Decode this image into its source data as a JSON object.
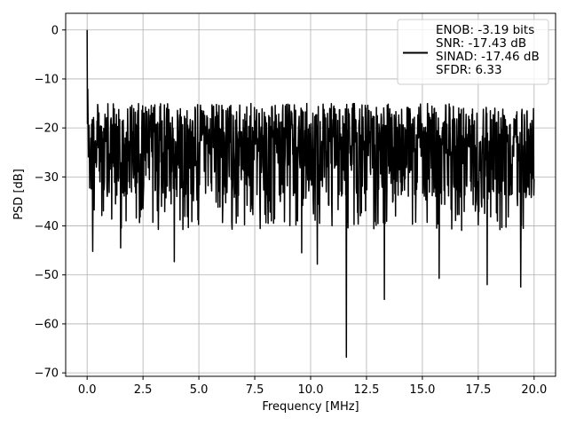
{
  "chart_data": {
    "type": "line",
    "title": "",
    "xlabel": "Frequency [MHz]",
    "ylabel": "PSD [dB]",
    "xlim": [
      -0.96,
      20.96
    ],
    "ylim": [
      -70.7,
      3.4
    ],
    "x_ticks": [
      0.0,
      2.5,
      5.0,
      7.5,
      10.0,
      12.5,
      15.0,
      17.5,
      20.0
    ],
    "x_tick_labels": [
      "0.0",
      "2.5",
      "5.0",
      "7.5",
      "10.0",
      "12.5",
      "15.0",
      "17.5",
      "20.0"
    ],
    "y_ticks": [
      0,
      -10,
      -20,
      -30,
      -40,
      -50,
      -60,
      -70
    ],
    "y_tick_labels": [
      "0",
      "−10",
      "−20",
      "−30",
      "−40",
      "−50",
      "−60",
      "−70"
    ],
    "grid": true,
    "legend_position": "top-right",
    "series": [
      {
        "name": "ENOB: -3.19 bits\nSNR: -17.43 dB\nSINAD: -17.46 dB\nSFDR: 6.33",
        "color": "#000000",
        "x_range": [
          0.0,
          20.0
        ],
        "noise_floor_mean_db": -22,
        "noise_ceiling_db": -14,
        "peak": {
          "x": 0.0,
          "y": 0.0
        },
        "notable_dips": [
          {
            "x": 0.25,
            "y": -45.2
          },
          {
            "x": 1.5,
            "y": -44.5
          },
          {
            "x": 3.9,
            "y": -47.3
          },
          {
            "x": 9.6,
            "y": -45.5
          },
          {
            "x": 10.3,
            "y": -47.8
          },
          {
            "x": 11.6,
            "y": -66.8
          },
          {
            "x": 13.3,
            "y": -55.0
          },
          {
            "x": 15.75,
            "y": -50.7
          },
          {
            "x": 17.9,
            "y": -52.0
          },
          {
            "x": 19.4,
            "y": -52.5
          }
        ]
      }
    ]
  }
}
